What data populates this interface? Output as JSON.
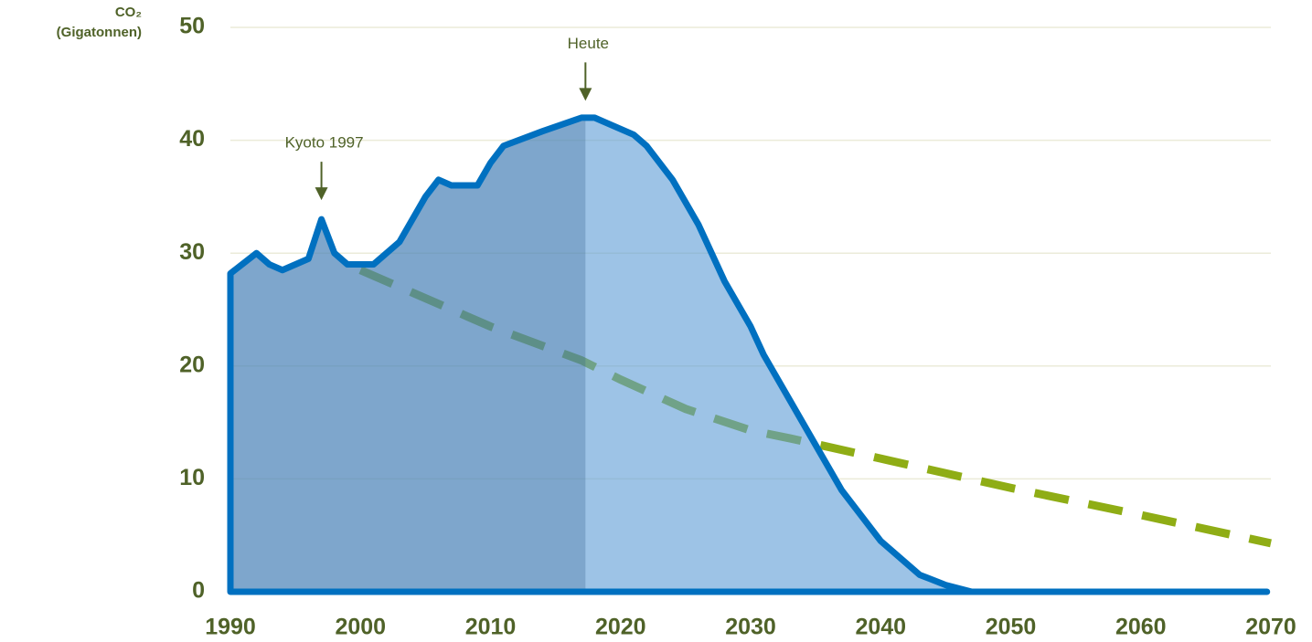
{
  "chart_data": {
    "type": "area",
    "y_label": [
      "CO₂",
      "(Gigatonnen)"
    ],
    "xlim": [
      1990,
      2070
    ],
    "ylim": [
      0,
      50
    ],
    "xticks": [
      1990,
      2000,
      2010,
      2020,
      2030,
      2040,
      2050,
      2060,
      2070
    ],
    "yticks": [
      0,
      10,
      20,
      30,
      40,
      50
    ],
    "grid": true,
    "series": [
      {
        "color": "#0070c0",
        "fill": "#5b9bd5",
        "x": [
          1990,
          1992,
          1993,
          1994,
          1996,
          1997,
          1998,
          1999,
          2001,
          2003,
          2005,
          2006,
          2007,
          2009,
          2010,
          2011,
          2014,
          2017,
          2018,
          2021,
          2022,
          2024,
          2026,
          2028,
          2030,
          2031,
          2033,
          2035,
          2037,
          2040,
          2043,
          2045,
          2047,
          2069.7
        ],
        "values": [
          28.2,
          30,
          29,
          28.5,
          29.5,
          33,
          30,
          29,
          29,
          31,
          35,
          36.5,
          36,
          36,
          38,
          39.5,
          40.8,
          42,
          42,
          40.5,
          39.5,
          36.5,
          32.5,
          27.5,
          23.5,
          21,
          17,
          13,
          9,
          4.5,
          1.5,
          0.6,
          0,
          0
        ]
      },
      {
        "color": "#8fad15",
        "dashed": true,
        "x": [
          2000,
          2010,
          2017,
          2020,
          2025,
          2030,
          2033,
          2040,
          2050,
          2060,
          2070
        ],
        "values": [
          28.5,
          23.5,
          20.5,
          18.8,
          16.2,
          14.3,
          13.6,
          11.8,
          9.2,
          6.8,
          4.3
        ]
      }
    ],
    "annotations": [
      {
        "text": "Kyoto 1997",
        "x": 1997,
        "y": 34.7
      },
      {
        "text": "Heute",
        "x": 2017.3,
        "y": 43.5,
        "shade_before": true
      }
    ]
  }
}
